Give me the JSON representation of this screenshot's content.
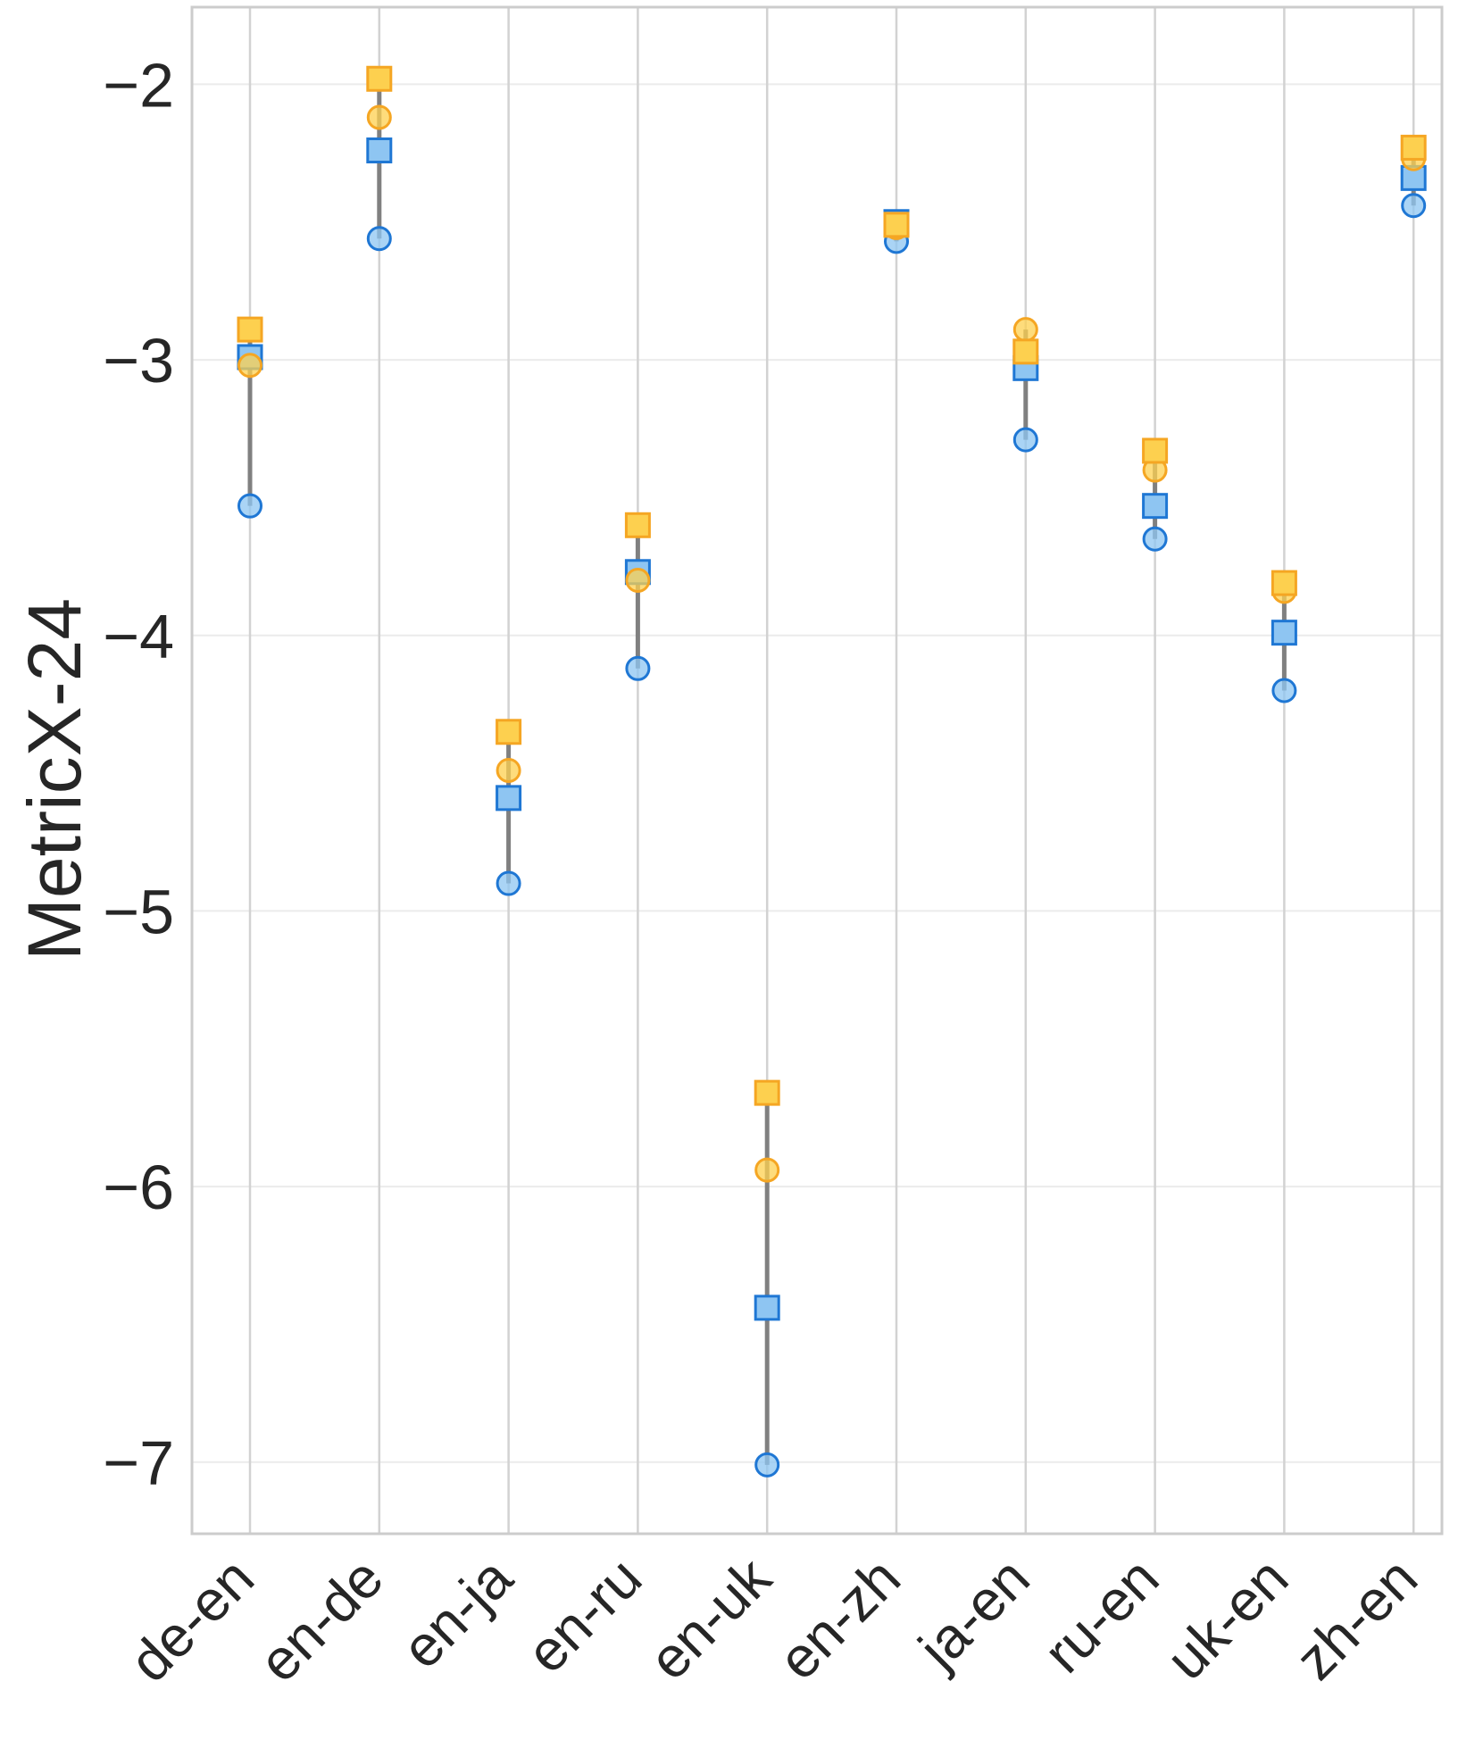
{
  "chart_data": {
    "type": "scatter",
    "title": "",
    "xlabel": "",
    "ylabel": "MetricX-24",
    "ylim": [
      -7.26,
      -1.72
    ],
    "yticks": [
      -2,
      -3,
      -4,
      -5,
      -6,
      -7
    ],
    "ytick_labels": [
      "−2",
      "−3",
      "−4",
      "−5",
      "−6",
      "−7"
    ],
    "grid": true,
    "categories": [
      "de-en",
      "en-de",
      "en-ja",
      "en-ru",
      "en-uk",
      "en-zh",
      "ja-en",
      "ru-en",
      "uk-en",
      "zh-en"
    ],
    "series": [
      {
        "name": "blue circle",
        "color": "#1f77d4",
        "marker": "circle",
        "values": [
          -3.53,
          -2.56,
          -4.9,
          -4.12,
          -7.01,
          -2.57,
          -3.29,
          -3.65,
          -4.2,
          -2.44
        ]
      },
      {
        "name": "blue square",
        "color": "#1f77d4",
        "marker": "square",
        "values": [
          -2.99,
          -2.24,
          -4.59,
          -3.77,
          -6.44,
          -2.5,
          -3.03,
          -3.53,
          -3.99,
          -2.34
        ]
      },
      {
        "name": "orange circle",
        "color": "#f5a623",
        "marker": "circle",
        "values": [
          -3.02,
          -2.12,
          -4.49,
          -3.8,
          -5.94,
          -2.52,
          -2.89,
          -3.4,
          -3.84,
          -2.27
        ]
      },
      {
        "name": "orange square",
        "color": "#f5a623",
        "marker": "square",
        "values": [
          -2.89,
          -1.98,
          -4.35,
          -3.6,
          -5.66,
          -2.51,
          -2.97,
          -3.33,
          -3.81,
          -2.23
        ]
      }
    ]
  }
}
